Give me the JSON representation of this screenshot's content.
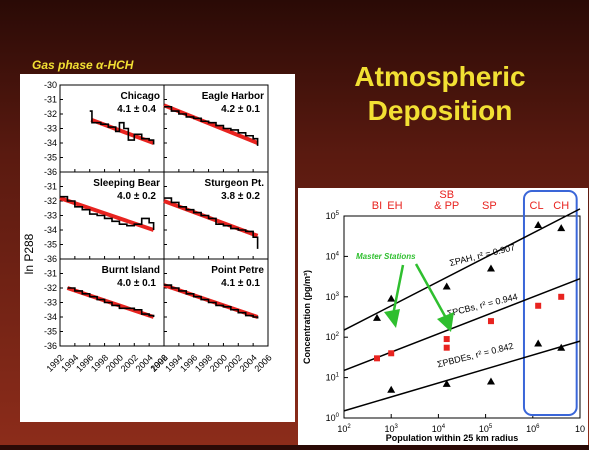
{
  "slide": {
    "title_line1": "Atmospheric",
    "title_line2": "Deposition",
    "left_caption": "Gas phase α-HCH"
  },
  "colors": {
    "accent_red": "#e8231f",
    "title_yellow": "#f2e033",
    "box_blue": "#3a66d8"
  },
  "chart_data": [
    {
      "type": "line",
      "ylabel": "ln P288",
      "ylim": [
        -36,
        -30
      ],
      "xlim": [
        1992,
        2006
      ],
      "x_ticks": [
        1992,
        1994,
        1996,
        1998,
        2000,
        2002,
        2004,
        2006
      ],
      "y_ticks": [
        -30,
        -31,
        -32,
        -33,
        -34,
        -35,
        -36
      ],
      "panels": [
        {
          "name": "Chicago",
          "rate": "4.1 ± 0.4",
          "observed": [
            [
              1996.0,
              -31.8
            ],
            [
              1996.3,
              -32.6
            ],
            [
              1997.5,
              -32.7
            ],
            [
              1998.5,
              -32.9
            ],
            [
              1999.5,
              -33.2
            ],
            [
              2000.0,
              -32.6
            ],
            [
              2000.6,
              -33.0
            ],
            [
              2001.2,
              -33.8
            ],
            [
              2002.0,
              -33.4
            ],
            [
              2003.0,
              -33.7
            ],
            [
              2004.0,
              -33.8
            ],
            [
              2004.6,
              -34.1
            ]
          ],
          "fit": [
            [
              1996.2,
              -32.4
            ],
            [
              2004.6,
              -34.0
            ]
          ]
        },
        {
          "name": "Eagle Harbor",
          "rate": "4.2 ± 0.1",
          "observed": [
            [
              1992.0,
              -31.5
            ],
            [
              1993.0,
              -31.8
            ],
            [
              1994.0,
              -32.0
            ],
            [
              1995.0,
              -32.2
            ],
            [
              1996.0,
              -32.3
            ],
            [
              1997.0,
              -32.5
            ],
            [
              1998.0,
              -32.6
            ],
            [
              1999.0,
              -32.8
            ],
            [
              2000.0,
              -33.0
            ],
            [
              2001.0,
              -33.1
            ],
            [
              2002.0,
              -33.3
            ],
            [
              2003.0,
              -33.5
            ],
            [
              2004.0,
              -33.7
            ],
            [
              2004.6,
              -34.2
            ]
          ],
          "fit": [
            [
              1992.0,
              -31.4
            ],
            [
              2004.6,
              -34.0
            ]
          ]
        },
        {
          "name": "Sleeping Bear",
          "rate": "4.0 ± 0.2",
          "observed": [
            [
              1992.0,
              -31.7
            ],
            [
              1993.0,
              -32.0
            ],
            [
              1994.0,
              -32.4
            ],
            [
              1995.0,
              -32.6
            ],
            [
              1996.0,
              -32.9
            ],
            [
              1997.0,
              -33.0
            ],
            [
              1998.0,
              -33.2
            ],
            [
              1999.0,
              -33.4
            ],
            [
              2000.0,
              -33.6
            ],
            [
              2001.0,
              -33.7
            ],
            [
              2002.0,
              -33.6
            ],
            [
              2003.0,
              -33.2
            ],
            [
              2004.0,
              -33.5
            ],
            [
              2004.6,
              -34.0
            ]
          ],
          "fit": [
            [
              1992.0,
              -31.8
            ],
            [
              2004.6,
              -34.0
            ]
          ]
        },
        {
          "name": "Sturgeon Pt.",
          "rate": "3.8 ± 0.2",
          "observed": [
            [
              1992.0,
              -31.8
            ],
            [
              1993.0,
              -32.1
            ],
            [
              1994.0,
              -32.4
            ],
            [
              1995.0,
              -32.6
            ],
            [
              1996.0,
              -32.8
            ],
            [
              1997.0,
              -33.0
            ],
            [
              1998.0,
              -33.2
            ],
            [
              1999.0,
              -33.6
            ],
            [
              2000.0,
              -33.7
            ],
            [
              2001.0,
              -33.9
            ],
            [
              2002.0,
              -34.0
            ],
            [
              2003.0,
              -34.1
            ],
            [
              2004.0,
              -34.5
            ],
            [
              2004.6,
              -35.3
            ]
          ],
          "fit": [
            [
              1992.0,
              -32.0
            ],
            [
              2004.6,
              -34.4
            ]
          ]
        },
        {
          "name": "Burnt Island",
          "rate": "4.0 ± 0.1",
          "observed": [
            [
              1993.0,
              -32.0
            ],
            [
              1994.0,
              -32.2
            ],
            [
              1995.0,
              -32.4
            ],
            [
              1996.0,
              -32.6
            ],
            [
              1997.0,
              -32.8
            ],
            [
              1998.0,
              -33.0
            ],
            [
              1999.0,
              -33.2
            ],
            [
              2000.0,
              -33.4
            ],
            [
              2001.0,
              -33.4
            ],
            [
              2002.0,
              -33.5
            ],
            [
              2003.0,
              -33.8
            ],
            [
              2004.0,
              -33.9
            ],
            [
              2004.6,
              -34.0
            ]
          ],
          "fit": [
            [
              1993.0,
              -32.0
            ],
            [
              2004.6,
              -34.0
            ]
          ]
        },
        {
          "name": "Point Petre",
          "rate": "4.1 ± 0.1",
          "observed": [
            [
              1992.0,
              -31.8
            ],
            [
              1993.0,
              -32.0
            ],
            [
              1994.0,
              -32.2
            ],
            [
              1995.0,
              -32.4
            ],
            [
              1996.0,
              -32.6
            ],
            [
              1997.0,
              -32.8
            ],
            [
              1998.0,
              -33.0
            ],
            [
              1999.0,
              -33.2
            ],
            [
              2000.0,
              -33.3
            ],
            [
              2001.0,
              -33.5
            ],
            [
              2002.0,
              -33.7
            ],
            [
              2003.0,
              -33.9
            ],
            [
              2004.0,
              -34.0
            ],
            [
              2004.6,
              -34.1
            ]
          ],
          "fit": [
            [
              1992.0,
              -31.8
            ],
            [
              2004.6,
              -34.0
            ]
          ]
        }
      ]
    },
    {
      "type": "scatter",
      "xlabel": "Population within 25 km radius",
      "ylabel": "Concentration (pg/m³)",
      "x_scale": "log",
      "y_scale": "log",
      "xlim": [
        100,
        10000000
      ],
      "ylim": [
        1,
        100000
      ],
      "x_ticks": [
        {
          "base": "10",
          "exp": "2"
        },
        {
          "base": "10",
          "exp": "3"
        },
        {
          "base": "10",
          "exp": "4"
        },
        {
          "base": "10",
          "exp": "5"
        },
        {
          "base": "10",
          "exp": "6"
        },
        {
          "base": "10",
          "exp": ""
        }
      ],
      "y_ticks": [
        {
          "base": "10",
          "exp": "0"
        },
        {
          "base": "10",
          "exp": "1"
        },
        {
          "base": "10",
          "exp": "2"
        },
        {
          "base": "10",
          "exp": "3"
        },
        {
          "base": "10",
          "exp": "4"
        },
        {
          "base": "10",
          "exp": "5"
        }
      ],
      "site_labels": [
        {
          "text": "BI",
          "x": 500
        },
        {
          "text": "EH",
          "x": 1200
        },
        {
          "text": "SB",
          "x": 15000
        },
        {
          "text": "& PP",
          "x": 15000
        },
        {
          "text": "SP",
          "x": 120000
        },
        {
          "text": "CL",
          "x": 1200000
        },
        {
          "text": "CH",
          "x": 4000000
        }
      ],
      "annotation": "Master Stations",
      "series": [
        {
          "label": "ΣPAH, r² = 0.907",
          "marker": "triangle",
          "color": "#000000",
          "points": [
            [
              500,
              300
            ],
            [
              1000,
              900
            ],
            [
              15000,
              1800
            ],
            [
              130000,
              5000
            ],
            [
              1300000,
              60000
            ],
            [
              4000000,
              50000
            ]
          ],
          "fit": [
            [
              100,
              150
            ],
            [
              10000000,
              150000
            ]
          ]
        },
        {
          "label": "ΣPCBs, r² = 0.944",
          "marker": "square",
          "color": "#e8231f",
          "points": [
            [
              500,
              30
            ],
            [
              1000,
              40
            ],
            [
              15000,
              90
            ],
            [
              15000,
              55
            ],
            [
              130000,
              250
            ],
            [
              1300000,
              600
            ],
            [
              4000000,
              1000
            ]
          ],
          "fit": [
            [
              100,
              15
            ],
            [
              10000000,
              2800
            ]
          ]
        },
        {
          "label": "ΣPBDEs, r² = 0.842",
          "marker": "triangle",
          "color": "#000000",
          "points": [
            [
              1000,
              5
            ],
            [
              15000,
              7
            ],
            [
              130000,
              8
            ],
            [
              1300000,
              70
            ],
            [
              4000000,
              55
            ]
          ],
          "fit": [
            [
              100,
              1.5
            ],
            [
              10000000,
              80
            ]
          ]
        }
      ]
    }
  ]
}
